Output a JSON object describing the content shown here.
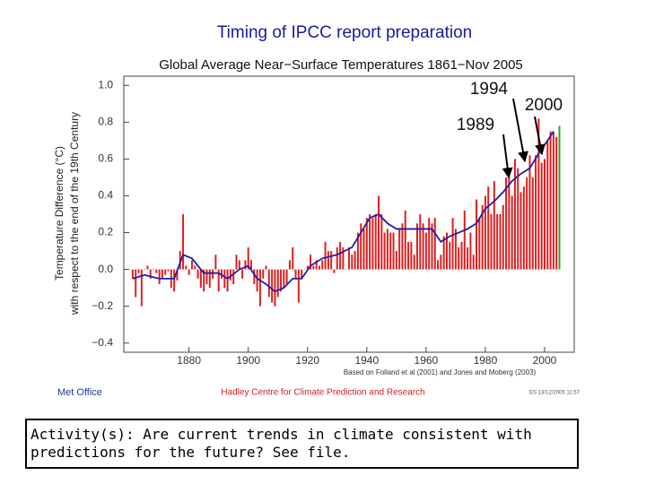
{
  "page_title": "Timing of IPCC report preparation",
  "chart_data": {
    "type": "bar",
    "title": "Global Average Near−Surface Temperatures 1861−Nov 2005",
    "y_label": [
      "Temperature Difference (°C)",
      "with respect to the end of the 19th Century"
    ],
    "x": [
      1861,
      1862,
      1863,
      1864,
      1865,
      1866,
      1867,
      1868,
      1869,
      1870,
      1871,
      1872,
      1873,
      1874,
      1875,
      1876,
      1877,
      1878,
      1879,
      1880,
      1881,
      1882,
      1883,
      1884,
      1885,
      1886,
      1887,
      1888,
      1889,
      1890,
      1891,
      1892,
      1893,
      1894,
      1895,
      1896,
      1897,
      1898,
      1899,
      1900,
      1901,
      1902,
      1903,
      1904,
      1905,
      1906,
      1907,
      1908,
      1909,
      1910,
      1911,
      1912,
      1913,
      1914,
      1915,
      1916,
      1917,
      1918,
      1919,
      1920,
      1921,
      1922,
      1923,
      1924,
      1925,
      1926,
      1927,
      1928,
      1929,
      1930,
      1931,
      1932,
      1933,
      1934,
      1935,
      1936,
      1937,
      1938,
      1939,
      1940,
      1941,
      1942,
      1943,
      1944,
      1945,
      1946,
      1947,
      1948,
      1949,
      1950,
      1951,
      1952,
      1953,
      1954,
      1955,
      1956,
      1957,
      1958,
      1959,
      1960,
      1961,
      1962,
      1963,
      1964,
      1965,
      1966,
      1967,
      1968,
      1969,
      1970,
      1971,
      1972,
      1973,
      1974,
      1975,
      1976,
      1977,
      1978,
      1979,
      1980,
      1981,
      1982,
      1983,
      1984,
      1985,
      1986,
      1987,
      1988,
      1989,
      1990,
      1991,
      1992,
      1993,
      1994,
      1995,
      1996,
      1997,
      1998,
      1999,
      2000,
      2001,
      2002,
      2003,
      2004,
      2005
    ],
    "series": [
      {
        "color": "#dd2020",
        "last_color": "#33a02c",
        "values": [
          -0.05,
          -0.15,
          -0.02,
          -0.2,
          0.0,
          0.02,
          -0.05,
          0.0,
          -0.02,
          -0.08,
          -0.05,
          -0.03,
          -0.01,
          -0.1,
          -0.12,
          -0.06,
          0.1,
          0.3,
          0.02,
          -0.03,
          0.05,
          0.02,
          -0.05,
          -0.1,
          -0.12,
          -0.08,
          -0.1,
          -0.05,
          0.08,
          -0.12,
          -0.05,
          -0.1,
          -0.12,
          -0.06,
          -0.08,
          0.08,
          0.05,
          -0.05,
          0.05,
          0.12,
          0.05,
          -0.08,
          -0.12,
          -0.2,
          -0.05,
          0.02,
          -0.15,
          -0.18,
          -0.2,
          -0.15,
          -0.12,
          -0.1,
          -0.08,
          0.05,
          0.12,
          -0.05,
          -0.18,
          -0.05,
          0.0,
          0.02,
          0.08,
          0.02,
          0.05,
          0.02,
          0.05,
          0.15,
          0.1,
          0.1,
          -0.02,
          0.12,
          0.15,
          0.12,
          0.0,
          0.12,
          0.08,
          0.1,
          0.2,
          0.25,
          0.22,
          0.28,
          0.3,
          0.28,
          0.3,
          0.4,
          0.3,
          0.2,
          0.22,
          0.2,
          0.2,
          0.1,
          0.22,
          0.25,
          0.32,
          0.15,
          0.15,
          0.08,
          0.25,
          0.3,
          0.25,
          0.2,
          0.28,
          0.25,
          0.28,
          0.05,
          0.08,
          0.18,
          0.2,
          0.15,
          0.28,
          0.22,
          0.12,
          0.15,
          0.32,
          0.12,
          0.2,
          0.08,
          0.38,
          0.28,
          0.35,
          0.4,
          0.45,
          0.3,
          0.48,
          0.3,
          0.3,
          0.35,
          0.5,
          0.52,
          0.4,
          0.6,
          0.55,
          0.42,
          0.45,
          0.5,
          0.62,
          0.5,
          0.62,
          0.82,
          0.58,
          0.6,
          0.7,
          0.75,
          0.75,
          0.72,
          0.78
        ]
      },
      {
        "type": "line",
        "color": "#1f1fa8",
        "x": [
          1861,
          1865,
          1870,
          1875,
          1878,
          1881,
          1885,
          1890,
          1893,
          1897,
          1900,
          1903,
          1906,
          1909,
          1912,
          1915,
          1918,
          1921,
          1925,
          1930,
          1935,
          1938,
          1941,
          1944,
          1947,
          1950,
          1955,
          1959,
          1962,
          1965,
          1968,
          1971,
          1974,
          1977,
          1980,
          1983,
          1986,
          1989,
          1992,
          1995,
          1998,
          2001,
          2003
        ],
        "values": [
          -0.05,
          -0.03,
          -0.05,
          -0.05,
          0.08,
          0.06,
          -0.02,
          -0.02,
          -0.05,
          0.0,
          0.02,
          -0.05,
          -0.08,
          -0.12,
          -0.1,
          -0.05,
          -0.05,
          0.02,
          0.06,
          0.08,
          0.12,
          0.2,
          0.28,
          0.3,
          0.25,
          0.22,
          0.22,
          0.22,
          0.22,
          0.15,
          0.18,
          0.2,
          0.22,
          0.25,
          0.33,
          0.37,
          0.42,
          0.48,
          0.52,
          0.55,
          0.63,
          0.7,
          0.75
        ]
      }
    ],
    "xlim": [
      1858,
      2010
    ],
    "xticks": [
      1880,
      1900,
      1920,
      1940,
      1960,
      1980,
      2000
    ],
    "ylim": [
      -0.45,
      1.05
    ],
    "yticks": [
      {
        "value": -0.4,
        "label": "−0.4"
      },
      {
        "value": -0.2,
        "label": "−0.2"
      },
      {
        "value": 0,
        "label": "0.0"
      },
      0.2,
      0.4,
      0.6,
      0.8,
      {
        "value": 1,
        "label": "1.0"
      }
    ],
    "annotations": [
      "1994",
      "2000",
      "1989"
    ],
    "source_note": "Based on Folland et al (2001) and Jones and Moberg (2003)",
    "credits": [
      "Met Office",
      "Hadley Centre for Climate Prediction and Research",
      "ES 13/12/2005 11:57"
    ]
  },
  "activity": "Activity(s): Are current trends in climate consistent with predictions for the future? See file."
}
